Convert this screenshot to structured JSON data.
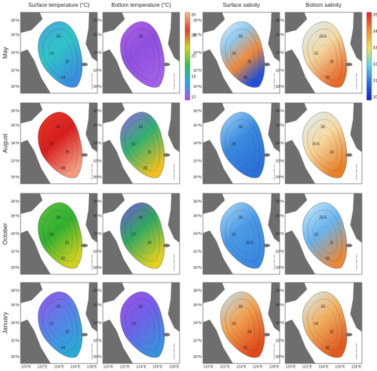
{
  "columns": [
    "Surface temperature (°C)",
    "Bottom temperature (°C)",
    "Surface salinity",
    "Bottom salinity"
  ],
  "rows": [
    "May",
    "August",
    "October",
    "January"
  ],
  "lat_labels": [
    "38°N",
    "36°N",
    "34°N",
    "32°N",
    "30°N"
  ],
  "lon_labels": [
    "120°E",
    "122°E",
    "124°E",
    "126°E",
    "128°E"
  ],
  "colorbars": {
    "temperature": [
      "30",
      "25",
      "20",
      "15",
      "10"
    ],
    "salinity": [
      "35",
      "34",
      "33",
      "32",
      "31",
      "30"
    ]
  },
  "credit": "Ocean Data View",
  "panels": [
    [
      [
        "16",
        "13",
        "15",
        "14"
      ],
      [
        "10"
      ],
      [
        "32",
        "33",
        "31",
        "30"
      ],
      [
        "33.5",
        "32",
        "31",
        "33"
      ]
    ],
    [
      [
        "31",
        "27",
        "29",
        "28"
      ],
      [
        "13",
        "11",
        "15",
        "22"
      ],
      [
        "32",
        "31"
      ],
      [
        "32",
        "33.5",
        "33"
      ]
    ],
    [
      [
        "19",
        "20",
        "21",
        "22"
      ],
      [
        "16",
        "17",
        "20"
      ],
      [
        "32",
        "31",
        "32.5"
      ],
      [
        "32.5",
        "32",
        "31",
        "33"
      ]
    ],
    [
      [
        "10",
        "12",
        "15",
        "14"
      ],
      [
        "12",
        "13"
      ],
      [
        "32",
        "33",
        "34",
        "31"
      ],
      [
        "33",
        "34",
        "32",
        "32"
      ]
    ]
  ]
}
